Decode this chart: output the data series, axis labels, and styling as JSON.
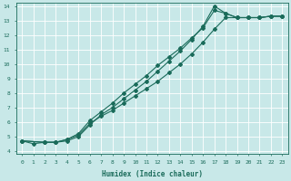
{
  "xlabel": "Humidex (Indice chaleur)",
  "bg_color": "#c8e8e8",
  "grid_color": "#ffffff",
  "line_color": "#1a6b5a",
  "xlim": [
    -0.5,
    23.5
  ],
  "ylim": [
    3.8,
    14.2
  ],
  "xticks": [
    0,
    1,
    2,
    3,
    4,
    5,
    6,
    7,
    8,
    9,
    10,
    11,
    12,
    13,
    14,
    15,
    16,
    17,
    18,
    19,
    20,
    21,
    22,
    23
  ],
  "yticks": [
    4,
    5,
    6,
    7,
    8,
    9,
    10,
    11,
    12,
    13,
    14
  ],
  "line1_x": [
    0,
    1,
    2,
    3,
    4,
    5,
    6,
    7,
    8,
    9,
    10,
    11,
    12,
    13,
    14,
    15,
    16,
    17,
    18,
    19,
    20,
    21,
    22,
    23
  ],
  "line1_y": [
    4.7,
    4.5,
    4.6,
    4.6,
    4.8,
    5.1,
    5.9,
    6.4,
    6.8,
    7.3,
    7.8,
    8.3,
    8.8,
    9.4,
    10.0,
    10.7,
    11.5,
    12.4,
    13.2,
    13.2,
    13.2,
    13.2,
    13.3,
    13.3
  ],
  "line2_x": [
    0,
    2,
    3,
    4,
    5,
    6,
    7,
    8,
    9,
    10,
    11,
    12,
    13,
    14,
    15,
    16,
    17,
    18,
    19,
    20,
    21,
    22,
    23
  ],
  "line2_y": [
    4.7,
    4.6,
    4.6,
    4.7,
    5.0,
    5.8,
    6.5,
    7.0,
    7.6,
    8.2,
    8.8,
    9.5,
    10.2,
    10.9,
    11.7,
    12.6,
    14.0,
    13.5,
    13.2,
    13.2,
    13.2,
    13.3,
    13.3
  ],
  "line3_x": [
    0,
    2,
    3,
    4,
    5,
    6,
    7,
    8,
    9,
    10,
    11,
    12,
    13,
    14,
    15,
    16,
    17,
    18,
    19,
    20,
    21,
    22,
    23
  ],
  "line3_y": [
    4.7,
    4.6,
    4.6,
    4.8,
    5.2,
    6.1,
    6.7,
    7.3,
    8.0,
    8.6,
    9.2,
    9.9,
    10.5,
    11.1,
    11.8,
    12.5,
    13.7,
    13.5,
    13.2,
    13.2,
    13.2,
    13.3,
    13.3
  ]
}
